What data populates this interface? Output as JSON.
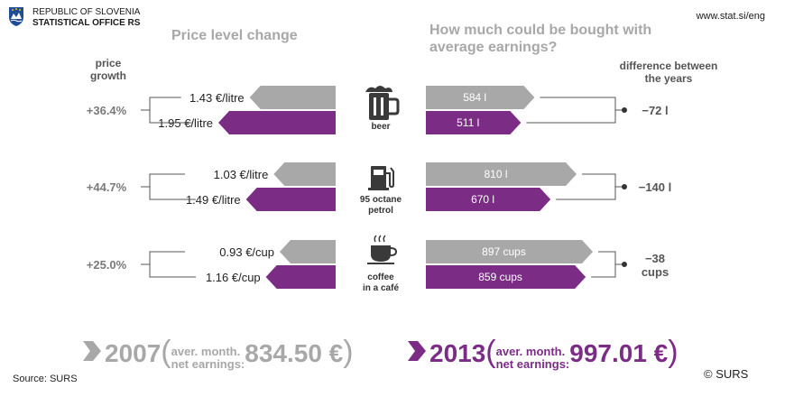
{
  "header": {
    "org_line1": "REPUBLIC OF SLOVENIA",
    "org_line2": "STATISTICAL OFFICE RS",
    "url": "www.stat.si/eng"
  },
  "colors": {
    "year2007": "#a8a8a8",
    "year2013": "#7b2d86"
  },
  "chart_data": {
    "type": "bar",
    "title_left": "Price level change",
    "title_right": "How much could be bought with average earnings?",
    "left_column_label": "price growth",
    "right_column_label": "difference between the years",
    "categories": [
      "beer",
      "95 octane petrol",
      "coffee in a café"
    ],
    "category_lines": [
      [
        "beer"
      ],
      [
        "95 octane",
        "petrol"
      ],
      [
        "coffee",
        "in a café"
      ]
    ],
    "icons": [
      "beer-mug-icon",
      "fuel-pump-icon",
      "coffee-cup-icon"
    ],
    "price_growth": [
      "+36.4%",
      "+44.7%",
      "+25.0%"
    ],
    "price_labels": [
      [
        "1.43 €/litre",
        "1.95 €/litre"
      ],
      [
        "1.03 €/litre",
        "1.49 €/litre"
      ],
      [
        "0.93 €/cup",
        "1.16 €/cup"
      ]
    ],
    "prices": [
      [
        1.43,
        1.95
      ],
      [
        1.03,
        1.49
      ],
      [
        0.93,
        1.16
      ]
    ],
    "quantity_labels": [
      [
        "584 l",
        "511 l"
      ],
      [
        "810 l",
        "670 l"
      ],
      [
        "897 cups",
        "859 cups"
      ]
    ],
    "quantities": [
      [
        584,
        511
      ],
      [
        810,
        670
      ],
      [
        897,
        859
      ]
    ],
    "difference_labels": [
      [
        "−72 l"
      ],
      [
        "−140 l"
      ],
      [
        "−38",
        "cups"
      ]
    ],
    "series": [
      {
        "name": "2007",
        "prices": [
          1.43,
          1.03,
          0.93
        ],
        "quantities": [
          584,
          810,
          897
        ]
      },
      {
        "name": "2013",
        "prices": [
          1.95,
          1.49,
          1.16
        ],
        "quantities": [
          511,
          670,
          859
        ]
      }
    ]
  },
  "footer": {
    "y2007": {
      "year": "2007",
      "line1": "aver. month.",
      "line2": "net earnings:",
      "amount": "834.50 €"
    },
    "y2013": {
      "year": "2013",
      "line1": "aver. month.",
      "line2": "net earnings:",
      "amount": "997.01 €"
    },
    "source": "Source: SURS",
    "copyright": "© SURS"
  }
}
